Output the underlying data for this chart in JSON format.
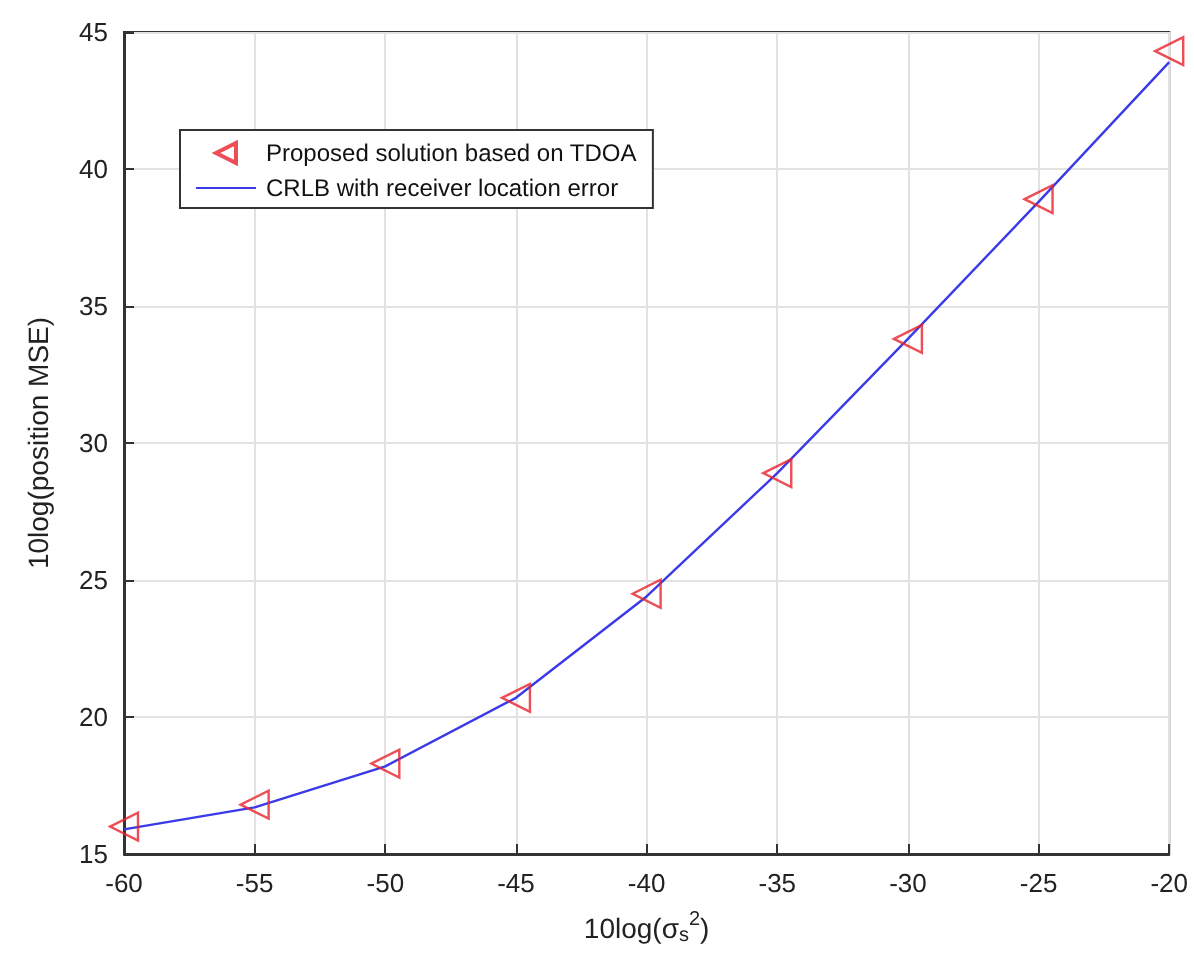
{
  "chart_data": {
    "type": "line",
    "xlabel": "10log(σ$_{s}$$^{2}$)",
    "ylabel": "10log(position MSE)",
    "x": [
      -60,
      -55,
      -50,
      -45,
      -40,
      -35,
      -30,
      -25,
      -20
    ],
    "series": [
      {
        "name": "Proposed solution based on TDOA",
        "type": "scatter",
        "marker": "triangle",
        "color": "#e8202a",
        "values": [
          16.0,
          16.8,
          18.3,
          20.7,
          24.5,
          28.9,
          33.8,
          38.9,
          44.3
        ]
      },
      {
        "name": "CRLB with receiver location error",
        "marker": "none",
        "line_style": "solid",
        "color": "#3a3ae8",
        "values": [
          15.9,
          16.7,
          18.2,
          20.7,
          24.4,
          28.9,
          33.8,
          38.8,
          43.9
        ]
      }
    ],
    "xlim": [
      -60,
      -20
    ],
    "xticks": [
      -60,
      -55,
      -50,
      -45,
      -40,
      -35,
      -30,
      -25,
      -20
    ],
    "ylim": [
      15,
      45
    ],
    "yticks": [
      15,
      20,
      25,
      30,
      35,
      40,
      45
    ],
    "grid": true,
    "legend": "top left"
  }
}
